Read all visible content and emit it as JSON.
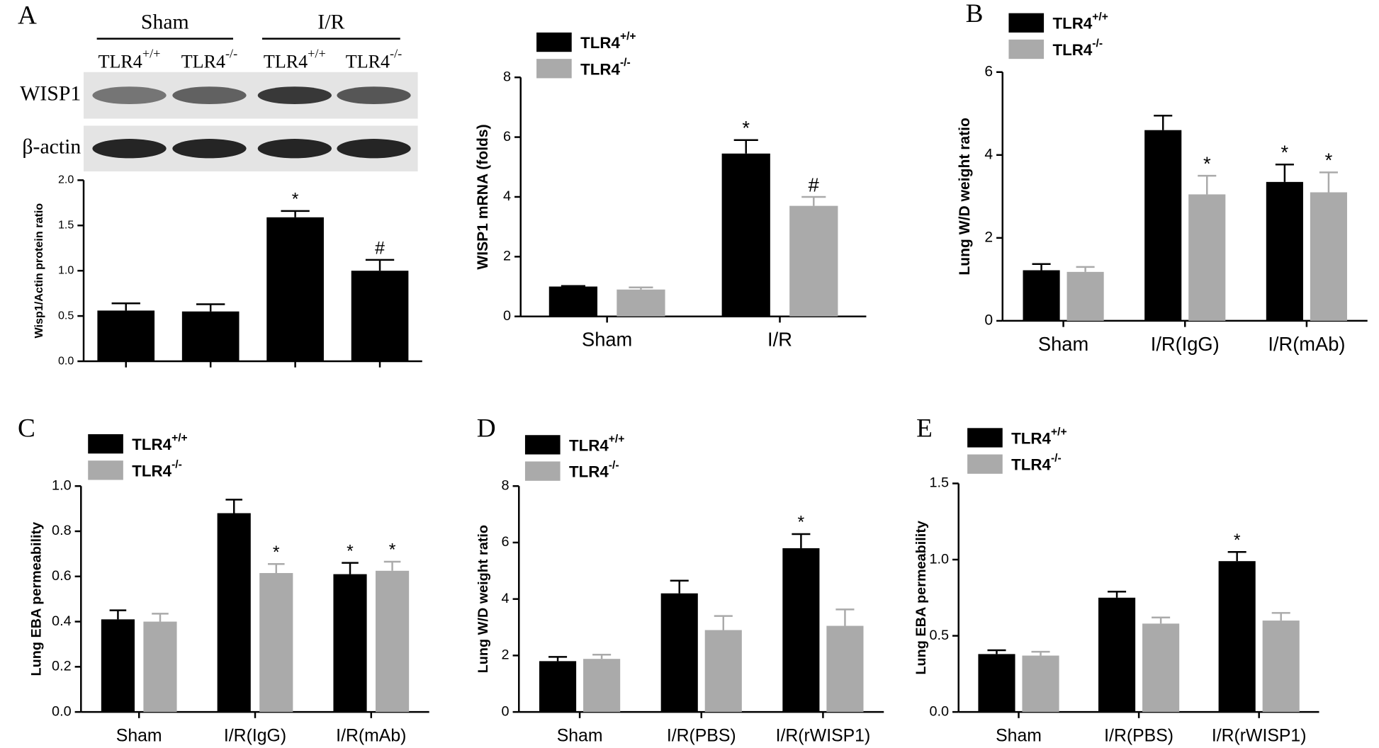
{
  "chart_data": [
    {
      "type": "blot",
      "panel": "A",
      "groups": [
        "Sham",
        "I/R"
      ],
      "lanes": [
        "TLR4+/+",
        "TLR4-/-",
        "TLR4+/+",
        "TLR4-/-"
      ],
      "rows": [
        "WISP1",
        "β-actin"
      ]
    },
    {
      "type": "bar",
      "y_label": "Wisp1/Actin protein ratio",
      "categories": [
        null,
        null,
        null,
        null
      ],
      "series": [
        {
          "color": "#000000",
          "values": [
            0.56,
            0.55,
            1.59,
            1.0
          ],
          "errors": [
            0.08,
            0.08,
            0.07,
            0.12
          ],
          "markers": [
            null,
            null,
            "*",
            "#"
          ]
        }
      ],
      "ylim": [
        0,
        2
      ],
      "yticks": [
        {
          "value": 0,
          "label": "0.0"
        },
        0.5,
        {
          "value": 1,
          "label": "1.0"
        },
        1.5,
        {
          "value": 2,
          "label": "2.0"
        }
      ]
    },
    {
      "type": "bar",
      "y_label": "WISP1 mRNA (folds)",
      "categories": [
        "Sham",
        "I/R"
      ],
      "legend": "upper left",
      "series": [
        {
          "name": "TLR4+/+",
          "color": "#000000",
          "values": [
            1.0,
            5.45
          ],
          "errors": [
            0.02,
            0.45
          ],
          "markers": [
            null,
            "*"
          ]
        },
        {
          "name": "TLR4-/-",
          "color": "#aaaaaa",
          "values": [
            0.9,
            3.7
          ],
          "errors": [
            0.07,
            0.3
          ],
          "markers": [
            null,
            "#"
          ]
        }
      ],
      "ylim": [
        0,
        8
      ],
      "yticks": [
        0,
        2,
        4,
        6,
        8
      ]
    },
    {
      "type": "bar",
      "panel": "B",
      "y_label": "Lung W/D weight ratio",
      "categories": [
        "Sham",
        "I/R(IgG)",
        "I/R(mAb)"
      ],
      "legend": "upper left",
      "series": [
        {
          "name": "TLR4+/+",
          "color": "#000000",
          "values": [
            1.22,
            4.6,
            3.35
          ],
          "errors": [
            0.15,
            0.35,
            0.42
          ],
          "markers": [
            null,
            null,
            "*"
          ]
        },
        {
          "name": "TLR4-/-",
          "color": "#aaaaaa",
          "values": [
            1.18,
            3.05,
            3.1
          ],
          "errors": [
            0.12,
            0.45,
            0.48
          ],
          "markers": [
            null,
            "*",
            "*"
          ]
        }
      ],
      "ylim": [
        0,
        6
      ],
      "yticks": [
        0,
        2,
        4,
        6
      ]
    },
    {
      "type": "bar",
      "panel": "C",
      "y_label": "Lung EBA permeability",
      "categories": [
        "Sham",
        "I/R(IgG)",
        "I/R(mAb)"
      ],
      "legend": "upper left",
      "series": [
        {
          "name": "TLR4+/+",
          "color": "#000000",
          "values": [
            0.41,
            0.88,
            0.61
          ],
          "errors": [
            0.04,
            0.06,
            0.05
          ],
          "markers": [
            null,
            null,
            "*"
          ]
        },
        {
          "name": "TLR4-/-",
          "color": "#aaaaaa",
          "values": [
            0.4,
            0.615,
            0.625
          ],
          "errors": [
            0.035,
            0.04,
            0.04
          ],
          "markers": [
            null,
            "*",
            "*"
          ]
        }
      ],
      "ylim": [
        0,
        1
      ],
      "yticks": [
        {
          "value": 0,
          "label": "0.0"
        },
        0.2,
        0.4,
        0.6,
        0.8,
        {
          "value": 1,
          "label": "1.0"
        }
      ]
    },
    {
      "type": "bar",
      "panel": "D",
      "y_label": "Lung W/D weight ratio",
      "categories": [
        "Sham",
        "I/R(PBS)",
        "I/R(rWISP1)"
      ],
      "legend": "upper left",
      "series": [
        {
          "name": "TLR4+/+",
          "color": "#000000",
          "values": [
            1.8,
            4.2,
            5.8
          ],
          "errors": [
            0.15,
            0.45,
            0.5
          ],
          "markers": [
            null,
            null,
            "*"
          ]
        },
        {
          "name": "TLR4-/-",
          "color": "#aaaaaa",
          "values": [
            1.88,
            2.9,
            3.05
          ],
          "errors": [
            0.15,
            0.5,
            0.58
          ],
          "markers": [
            null,
            null,
            null
          ]
        }
      ],
      "ylim": [
        0,
        8
      ],
      "yticks": [
        0,
        2,
        4,
        6,
        8
      ]
    },
    {
      "type": "bar",
      "panel": "E",
      "y_label": "Lung EBA permeability",
      "categories": [
        "Sham",
        "I/R(PBS)",
        "I/R(rWISP1)"
      ],
      "legend": "upper left",
      "series": [
        {
          "name": "TLR4+/+",
          "color": "#000000",
          "values": [
            0.38,
            0.75,
            0.99
          ],
          "errors": [
            0.025,
            0.04,
            0.06
          ],
          "markers": [
            null,
            null,
            "*"
          ]
        },
        {
          "name": "TLR4-/-",
          "color": "#aaaaaa",
          "values": [
            0.37,
            0.58,
            0.6
          ],
          "errors": [
            0.025,
            0.04,
            0.05
          ],
          "markers": [
            null,
            null,
            null
          ]
        }
      ],
      "ylim": [
        0,
        1.5
      ],
      "yticks": [
        {
          "value": 0,
          "label": "0.0"
        },
        0.5,
        {
          "value": 1,
          "label": "1.0"
        },
        1.5
      ]
    }
  ]
}
